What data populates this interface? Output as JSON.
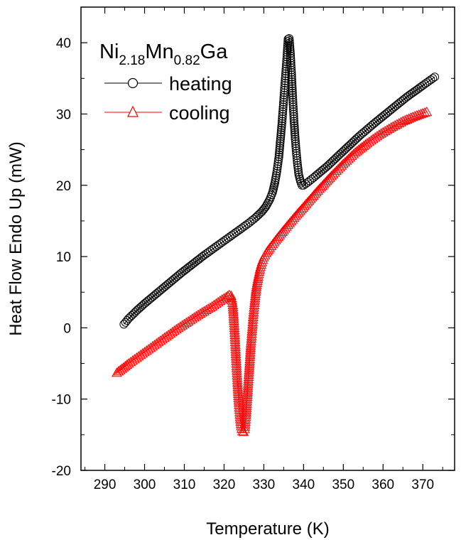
{
  "chart_data": {
    "type": "scatter",
    "xlabel": "Temperature (K)",
    "ylabel": "Heat Flow Endo Up (mW)",
    "xlim": [
      284,
      378
    ],
    "ylim": [
      -20,
      45
    ],
    "x_ticks": [
      290,
      300,
      310,
      320,
      330,
      340,
      350,
      360,
      370
    ],
    "x_tick_labels": [
      "290",
      "300",
      "310",
      "320",
      "330",
      "340",
      "350",
      "360",
      "370"
    ],
    "y_ticks": [
      -20,
      -10,
      0,
      10,
      20,
      30,
      40
    ],
    "y_tick_labels": [
      "-20",
      "-10",
      "0",
      "10",
      "20",
      "30",
      "40"
    ],
    "grid": false,
    "sample_label": {
      "base1": "Ni",
      "sub1": "2.18",
      "base2": "Mn",
      "sub2": "0.82",
      "base3": "Ga"
    },
    "legend_placement": "top-left",
    "series": [
      {
        "name": "heating",
        "color": "#000000",
        "marker": "circle",
        "x": [
          294.8,
          296,
          298,
          300,
          303,
          306,
          309,
          312,
          315,
          318,
          321,
          324,
          326,
          328,
          329.5,
          330.5,
          331.5,
          332.2,
          332.8,
          333.3,
          333.8,
          334.2,
          334.6,
          335,
          335.4,
          335.8,
          336.1,
          336.4,
          336.7,
          337,
          337.3,
          337.6,
          337.9,
          338.2,
          338.5,
          338.8,
          339.2,
          339.6,
          340,
          341,
          343,
          346,
          350,
          354,
          358,
          362,
          366,
          370,
          373
        ],
        "y": [
          0.5,
          1.3,
          2.4,
          3.4,
          4.8,
          6.2,
          7.6,
          8.9,
          10.2,
          11.4,
          12.6,
          13.8,
          14.6,
          15.5,
          16.3,
          17.0,
          18.0,
          19.0,
          20.4,
          22.0,
          24.0,
          26.5,
          29.0,
          32.0,
          35.0,
          38.0,
          40.5,
          40.6,
          38.5,
          35.5,
          32.0,
          29.0,
          26.5,
          24.5,
          22.8,
          21.5,
          20.6,
          20.0,
          20.0,
          20.4,
          21.3,
          22.7,
          24.8,
          26.9,
          28.8,
          30.6,
          32.4,
          34.0,
          35.2
        ]
      },
      {
        "name": "cooling",
        "color": "#ff0000",
        "marker": "triangle",
        "x": [
          293,
          296,
          299,
          302,
          305,
          308,
          311,
          314,
          317,
          319,
          320.5,
          321.3,
          321.8,
          322.2,
          322.5,
          322.8,
          323.1,
          323.4,
          323.7,
          324,
          324.3,
          324.6,
          324.9,
          325.2,
          325.5,
          325.8,
          326.1,
          326.4,
          326.7,
          327,
          327.3,
          327.6,
          327.9,
          328.2,
          328.6,
          329,
          329.5,
          330,
          330.6,
          331.5,
          333,
          335,
          338,
          341,
          344,
          347,
          350,
          353,
          356,
          359,
          362,
          365,
          368,
          371
        ],
        "y": [
          -6.3,
          -5.0,
          -3.8,
          -2.6,
          -1.4,
          -0.2,
          0.9,
          2.0,
          3.0,
          3.8,
          4.3,
          4.6,
          4.5,
          3.2,
          1.0,
          -2.0,
          -5.0,
          -8.0,
          -10.5,
          -12.5,
          -13.8,
          -14.5,
          -14.6,
          -14.2,
          -12.5,
          -10.0,
          -7.5,
          -5.0,
          -2.5,
          -0.5,
          1.5,
          3.2,
          4.8,
          6.0,
          7.2,
          8.2,
          9.2,
          9.9,
          10.5,
          11.2,
          12.3,
          13.7,
          15.7,
          17.6,
          19.5,
          21.3,
          23.0,
          24.6,
          25.9,
          27.1,
          28.1,
          29.0,
          29.7,
          30.3
        ]
      }
    ]
  }
}
